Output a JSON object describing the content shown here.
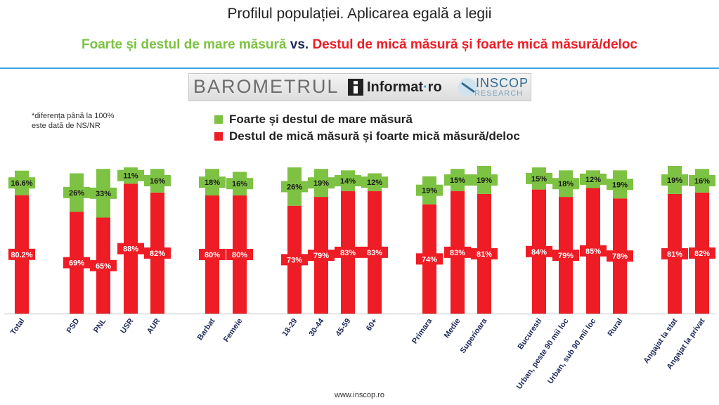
{
  "header": {
    "title": "Profilul populației. Aplicarea egală a legii",
    "subtitle_green": "Foarte și destul de mare măsură",
    "subtitle_vs": "vs.",
    "subtitle_red": "Destul de mică măsură și foarte mică măsură/deloc"
  },
  "logo": {
    "barometrul": "BAROMETRUL",
    "informat": "Informat",
    "informat_dot": "·",
    "informat_ro": "ro",
    "inscop": "INSCOP",
    "research": "RESEARCH"
  },
  "note": {
    "line1": "*diferența până la 100%",
    "line2": "este dată de NS/NR"
  },
  "footer": {
    "url": "www.inscop.ro"
  },
  "colors": {
    "green": "#7dc242",
    "red": "#ee1c25",
    "axis": "#bfbfbf"
  },
  "chart_data": {
    "type": "bar",
    "stacked": true,
    "title": "Profilul populației. Aplicarea egală a legii",
    "categories": [
      "Total",
      "PSD",
      "PNL",
      "USR",
      "AUR",
      "Barbat",
      "Femeie",
      "18-29",
      "30-44",
      "45-59",
      "60+",
      "Primara",
      "Medie",
      "Superioara",
      "Bucuresti",
      "Urban, peste 90 mii loc",
      "Urban, sub 90 mii loc",
      "Rural",
      "Angajat la stat",
      "Angajat la privat"
    ],
    "series": [
      {
        "name": "Destul de mică măsură și foarte mică măsură/deloc",
        "color": "#ee1c25",
        "values": [
          80.2,
          69,
          65,
          88,
          82,
          80,
          80,
          73,
          79,
          83,
          83,
          74,
          83,
          81,
          84,
          79,
          85,
          78,
          81,
          82
        ],
        "labels": [
          "80.2%",
          "69%",
          "65%",
          "88%",
          "82%",
          "80%",
          "80%",
          "73%",
          "79%",
          "83%",
          "83%",
          "74%",
          "83%",
          "81%",
          "84%",
          "79%",
          "85%",
          "78%",
          "81%",
          "82%"
        ]
      },
      {
        "name": "Foarte și destul de mare măsură",
        "color": "#7dc242",
        "values": [
          16.6,
          26,
          33,
          11,
          16,
          18,
          16,
          26,
          19,
          14,
          12,
          19,
          15,
          19,
          15,
          18,
          12,
          19,
          19,
          16
        ],
        "labels": [
          "16.6%",
          "26%",
          "33%",
          "11%",
          "16%",
          "18%",
          "16%",
          "26%",
          "19%",
          "14%",
          "12%",
          "19%",
          "15%",
          "19%",
          "15%",
          "18%",
          "12%",
          "19%",
          "19%",
          "16%"
        ]
      }
    ],
    "ylim": [
      0,
      100
    ],
    "grid": false,
    "legend_position": "top-center"
  }
}
